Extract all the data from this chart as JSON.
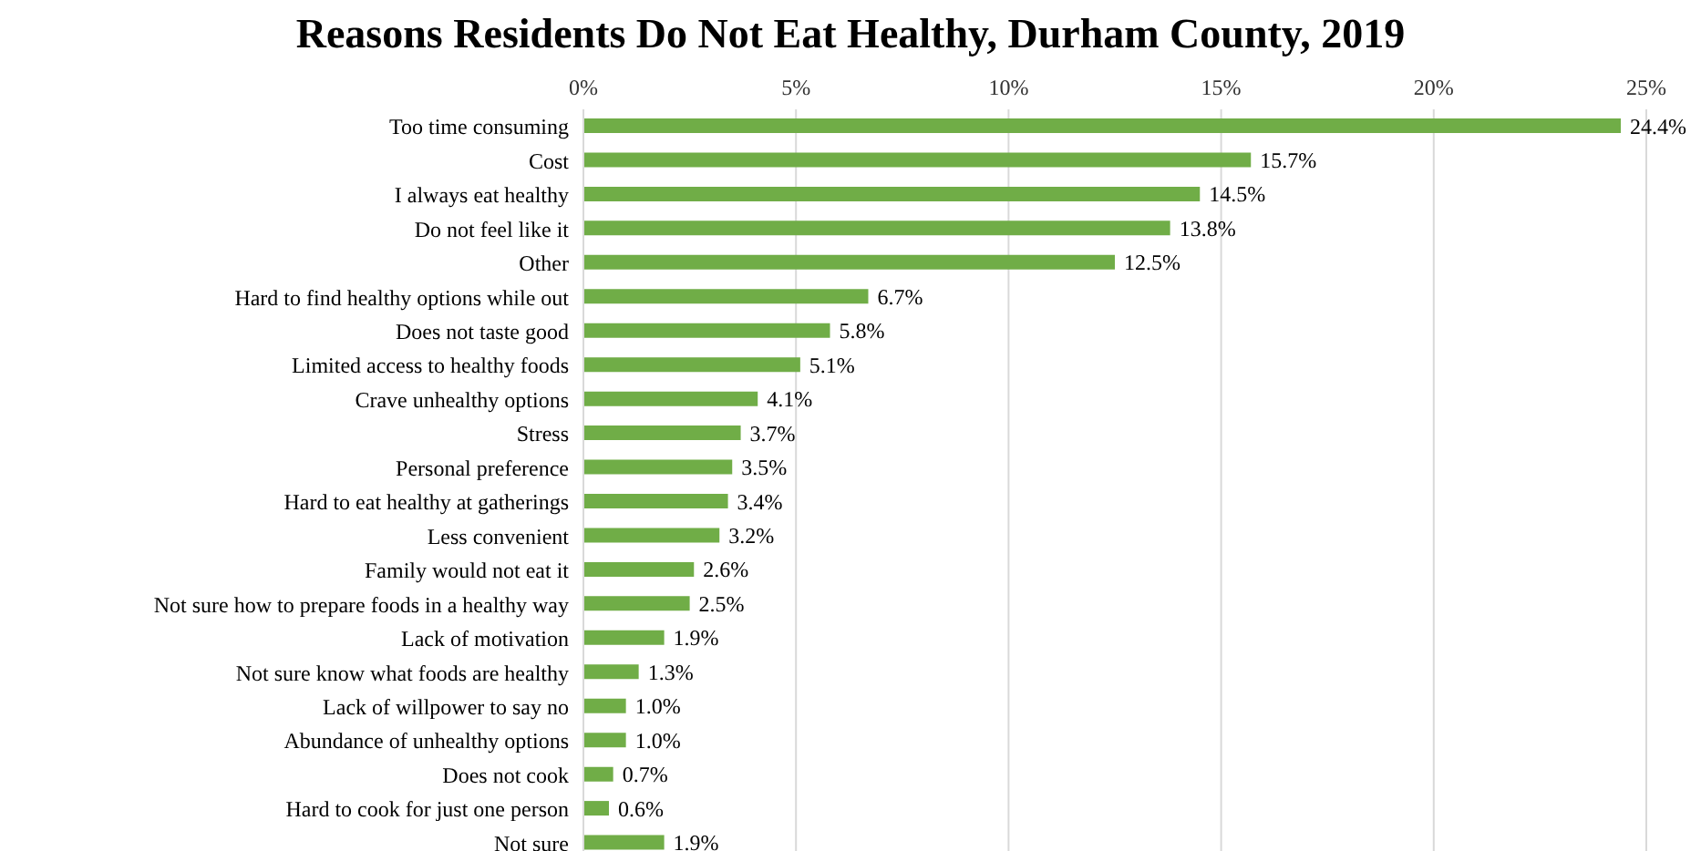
{
  "chart_data": {
    "type": "bar",
    "orientation": "horizontal",
    "title": "Reasons Residents Do Not Eat Healthy, Durham County, 2019",
    "categories": [
      "Too time consuming",
      "Cost",
      "I always eat healthy",
      "Do not feel like it",
      "Other",
      "Hard to find healthy options while out",
      "Does not taste good",
      "Limited access to healthy foods",
      "Crave unhealthy options",
      "Stress",
      "Personal preference",
      "Hard to eat healthy at gatherings",
      "Less convenient",
      "Family would not eat it",
      "Not sure how to prepare foods in a healthy way",
      "Lack of motivation",
      "Not sure know what foods are healthy",
      "Lack of willpower to say no",
      "Abundance of unhealthy options",
      "Does not cook",
      "Hard to cook for just one person",
      "Not sure"
    ],
    "values": [
      24.4,
      15.7,
      14.5,
      13.8,
      12.5,
      6.7,
      5.8,
      5.1,
      4.1,
      3.7,
      3.5,
      3.4,
      3.2,
      2.6,
      2.5,
      1.9,
      1.3,
      1.0,
      1.0,
      0.7,
      0.6,
      1.9
    ],
    "value_labels": [
      "24.4%",
      "15.7%",
      "14.5%",
      "13.8%",
      "12.5%",
      "6.7%",
      "5.8%",
      "5.1%",
      "4.1%",
      "3.7%",
      "3.5%",
      "3.4%",
      "3.2%",
      "2.6%",
      "2.5%",
      "1.9%",
      "1.3%",
      "1.0%",
      "1.0%",
      "0.7%",
      "0.6%",
      "1.9%"
    ],
    "color": "#70ad47",
    "xlim": [
      0,
      25
    ],
    "xticks": [
      {
        "value": 0,
        "label": "0%"
      },
      {
        "value": 5,
        "label": "5%"
      },
      {
        "value": 10,
        "label": "10%"
      },
      {
        "value": 15,
        "label": "15%"
      },
      {
        "value": 20,
        "label": "20%"
      },
      {
        "value": 25,
        "label": "25%"
      }
    ],
    "grid": "x",
    "legend": false
  }
}
